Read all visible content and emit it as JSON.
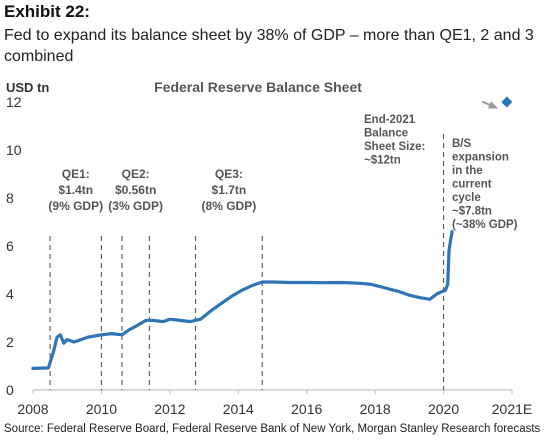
{
  "header": {
    "exhibit": "Exhibit 22:",
    "subtitle": "Fed to expand its balance sheet by 38% of GDP – more than QE1, 2 and 3 combined"
  },
  "source": "Source: Federal Reserve Board, Federal Reserve Bank of New York, Morgan Stanley Research forecasts",
  "colors": {
    "line": "#2E75B6",
    "marker": "#2E75B6",
    "arrow": "#9A9A9A",
    "dashes": "#555555",
    "axis": "#BFBFBF"
  },
  "chart_data": {
    "type": "line",
    "title": "Federal Reserve Balance Sheet",
    "ylabel": "USD tn",
    "xlabel": "",
    "ylim": [
      0,
      12
    ],
    "xlim": [
      2008,
      2022
    ],
    "yticks": [
      "0",
      "2",
      "4",
      "6",
      "8",
      "10",
      "12"
    ],
    "xticks": [
      "2008",
      "2010",
      "2012",
      "2014",
      "2016",
      "2018",
      "2020",
      "2021E"
    ],
    "series": [
      {
        "name": "Fed balance sheet",
        "x": [
          2008.0,
          2008.45,
          2008.6,
          2008.7,
          2008.8,
          2008.9,
          2009.0,
          2009.2,
          2009.4,
          2009.6,
          2009.8,
          2010.0,
          2010.3,
          2010.6,
          2010.8,
          2011.0,
          2011.3,
          2011.5,
          2011.8,
          2012.0,
          2012.3,
          2012.6,
          2012.9,
          2013.2,
          2013.5,
          2013.8,
          2014.1,
          2014.4,
          2014.7,
          2015.0,
          2015.5,
          2016.0,
          2016.5,
          2017.0,
          2017.5,
          2017.9,
          2018.3,
          2018.7,
          2019.0,
          2019.3,
          2019.6,
          2019.8,
          2019.95,
          2020.05,
          2020.12,
          2020.16,
          2020.2,
          2020.25
        ],
        "values": [
          0.9,
          0.92,
          1.6,
          2.2,
          2.3,
          1.95,
          2.1,
          2.0,
          2.1,
          2.2,
          2.25,
          2.3,
          2.35,
          2.3,
          2.5,
          2.65,
          2.9,
          2.9,
          2.85,
          2.95,
          2.9,
          2.85,
          2.95,
          3.3,
          3.6,
          3.9,
          4.15,
          4.35,
          4.5,
          4.5,
          4.48,
          4.48,
          4.47,
          4.48,
          4.45,
          4.4,
          4.25,
          4.1,
          3.95,
          3.85,
          3.78,
          4.0,
          4.1,
          4.15,
          4.4,
          5.8,
          6.2,
          6.6
        ]
      },
      {
        "name": "End-2021 forecast",
        "x": [
          2021.85
        ],
        "values": [
          12
        ]
      }
    ],
    "qe_events": [
      {
        "label": "QE1:\n$1.4tn\n(9% GDP)",
        "start": 2008.5,
        "end": 2010.0
      },
      {
        "label": "QE2:\n$0.56tn\n(3% GDP)",
        "start": 2010.6,
        "end": 2011.4
      },
      {
        "label": "QE3:\n$1.7tn\n(8% GDP)",
        "start": 2012.75,
        "end": 2014.7
      }
    ],
    "annotations": [
      "End-2021\nBalance\nSheet Size:\n~$12tn",
      "B/S\nexpansion\nin the\ncurrent\ncycle\n~$7.8tn\n(~38% GDP)"
    ],
    "grid": false,
    "legend": "none"
  }
}
